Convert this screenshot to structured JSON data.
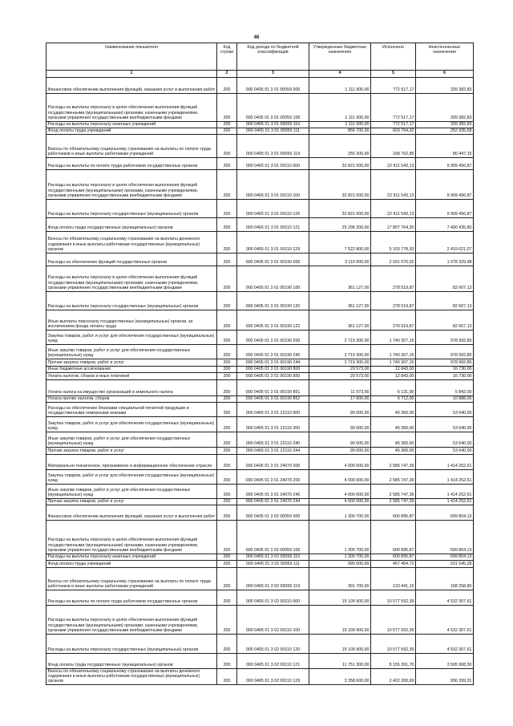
{
  "page_number": "46",
  "headers": [
    "Наименование показателя",
    "Код строки",
    "Код дохода по бюджетной классификации",
    "Утвержденные бюджетные назначения",
    "Исполнено",
    "Неисполненные назначения"
  ],
  "column_numbers": [
    "1",
    "2",
    "3",
    "4",
    "5",
    "6"
  ],
  "rows": [
    [
      "Финансовое обеспечение выполнения функций, оказания услуг и выполнения работ",
      "200",
      "000 0405 01 3 01 00059 000",
      "1 111 900,00",
      "772 517,17",
      "339 382,83"
    ],
    [
      "Расходы на выплаты персоналу в целях обеспечения выполнения функций государственными (муниципальными) органами, казенными учреждениями, органами управления государственными внебюджетными фондами",
      "200",
      "000 0405 01 3 01 00059 100",
      "1 111 900,00",
      "772 517,17",
      "339 382,83"
    ],
    [
      "Расходы на выплаты персоналу казенных учреждений",
      "200",
      "000 0405 01 3 01 00059 110",
      "1 111 900,00",
      "772 517,17",
      "339 382,83"
    ],
    [
      "Фонд оплаты труда учреждений",
      "200",
      "000 0405 01 3 01 00059 111",
      "856 700,00",
      "603 764,32",
      "252 935,68"
    ],
    [
      "Взносы по обязательному социальному страхованию на выплаты по оплате труда работников и иные выплаты работникам учреждений",
      "200",
      "000 0405 01 3 01 00059 119",
      "255 200,00",
      "168 752,85",
      "86 447,15"
    ],
    [
      "Расходы на выплаты по оплате труда работников государственных органов",
      "200",
      "000 0405 01 3 01 00110 000",
      "32 821 000,00",
      "22 911 543,13",
      "9 909 456,87"
    ],
    [
      "Расходы на выплаты персоналу в целях обеспечения выполнения функций государственными (муниципальными) органами, казенными учреждениями, органами управления государственными внебюджетными фондами",
      "200",
      "000 0405 01 3 01 00110 100",
      "32 821 000,00",
      "22 911 543,13",
      "9 909 456,87"
    ],
    [
      "Расходы на выплаты персоналу государственных (муниципальных) органов",
      "200",
      "000 0405 01 3 01 00110 120",
      "32 821 000,00",
      "22 911 543,13",
      "9 909 456,87"
    ],
    [
      "Фонд оплаты труда государственных (муниципальных) органов",
      "200",
      "000 0405 01 3 01 00110 121",
      "25 298 200,00",
      "17 807 764,20",
      "7 490 435,80"
    ],
    [
      "Взносы по обязательному социальному страхованию на выплаты денежного содержания и иные выплаты работникам государственных (муниципальных) органов",
      "200",
      "000 0405 01 3 01 00110 129",
      "7 522 800,00",
      "5 103 778,93",
      "2 419 021,07"
    ],
    [
      "Расходы на обеспечение функций государственных органов",
      "200",
      "000 0405 01 3 01 00190 000",
      "3 110 000,00",
      "2 031 670,02",
      "1 078 329,98"
    ],
    [
      "Расходы на выплаты персоналу в целях обеспечения выполнения функций государственными (муниципальными) органами, казенными учреждениями, органами управления государственными внебюджетными фондами",
      "200",
      "000 0405 01 3 01 00190 100",
      "361 127,00",
      "278 519,87",
      "82 607,13"
    ],
    [
      "Расходы на выплаты персоналу государственных (муниципальных) органов",
      "200",
      "000 0405 01 3 01 00190 120",
      "361 127,00",
      "278 519,87",
      "82 607,13"
    ],
    [
      "Иные выплаты персоналу государственных (муниципальных) органов, за исключением фонда оплаты труда",
      "200",
      "000 0405 01 3 01 00190 122",
      "361 127,00",
      "278 519,87",
      "82 607,13"
    ],
    [
      "Закупка товаров, работ и услуг для обеспечения государственных (муниципальных) нужд",
      "200",
      "000 0405 01 3 01 00190 200",
      "2 719 300,00",
      "1 740 307,15",
      "978 992,85"
    ],
    [
      "Иные закупки товаров, работ и услуг для обеспечения государственных (муниципальных) нужд",
      "200",
      "000 0405 01 3 01 00190 240",
      "2 719 300,00",
      "1 740 307,15",
      "978 992,85"
    ],
    [
      "Прочая закупка товаров, работ и услуг",
      "200",
      "000 0405 01 3 01 00190 244",
      "2 719 300,00",
      "1 740 307,15",
      "978 992,85"
    ],
    [
      "Иные бюджетные ассигнования",
      "200",
      "000 0405 01 3 01 00190 800",
      "29 573,00",
      "12 843,00",
      "16 730,00"
    ],
    [
      "Уплата налогов, сборов и иных платежей",
      "200",
      "000 0405 01 3 01 00190 850",
      "29 573,00",
      "12 843,00",
      "16 730,00"
    ],
    [
      "Уплата налога на имущество организаций и земельного налога",
      "200",
      "000 0405 01 3 01 00190 851",
      "11 973,00",
      "6 131,00",
      "5 842,00"
    ],
    [
      "Уплата прочих налогов, сборов",
      "200",
      "000 0405 01 3 01 00190 852",
      "17 600,00",
      "6 712,00",
      "10 888,00"
    ],
    [
      "Расходы на обеспечение бланками специальной печатной продукции и государственными номерными знаками",
      "200",
      "000 0405 01 3 01 22110 000",
      "99 000,00",
      "45 360,00",
      "53 640,00"
    ],
    [
      "Закупка товаров, работ и услуг для обеспечения государственных (муниципальных) нужд",
      "200",
      "000 0405 01 3 01 22110 200",
      "99 000,00",
      "45 360,00",
      "53 640,00"
    ],
    [
      "Иные закупки товаров, работ и услуг для обеспечения государственных (муниципальных) нужд",
      "200",
      "000 0405 01 3 01 22110 240",
      "99 000,00",
      "45 360,00",
      "53 640,00"
    ],
    [
      "Прочая закупка товаров, работ и услуг",
      "200",
      "000 0405 01 3 01 22110 244",
      "99 000,00",
      "45 360,00",
      "53 640,00"
    ],
    [
      "Материально-техническое, программное и информационное обеспечение отрасли",
      "200",
      "000 0405 01 3 01 24070 000",
      "4 000 000,00",
      "2 585 747,39",
      "1 414 252,61"
    ],
    [
      "Закупка товаров, работ и услуг для обеспечения государственных (муниципальных) нужд",
      "200",
      "000 0405 01 3 01 24070 200",
      "4 000 000,00",
      "2 585 747,39",
      "1 414 252,61"
    ],
    [
      "Иные закупки товаров, работ и услуг для обеспечения государственных (муниципальных) нужд",
      "200",
      "000 0405 01 3 01 24070 240",
      "4 000 000,00",
      "2 585 747,39",
      "1 414 252,61"
    ],
    [
      "Прочая закупка товаров, работ и услуг",
      "200",
      "000 0405 01 3 01 24070 244",
      "4 000 000,00",
      "2 585 747,39",
      "1 414 252,61"
    ],
    [
      "Финансовое обеспечение выполнения функций, оказания услуг и выполнения работ",
      "200",
      "000 0405 01 3 02 00059 000",
      "1 300 700,00",
      "600 895,87",
      "699 804,13"
    ],
    [
      "Расходы на выплаты персоналу в целях обеспечения выполнения функций государственными (муниципальными) органами, казенными учреждениями, органами управления государственными внебюджетными фондами",
      "200",
      "000 0405 01 3 02 00059 100",
      "1 300 700,00",
      "600 895,87",
      "699 804,13"
    ],
    [
      "Расходы на выплаты персоналу казенных учреждений",
      "200",
      "000 0405 01 3 02 00059 110",
      "1 300 700,00",
      "600 895,87",
      "699 804,13"
    ],
    [
      "Фонд оплаты труда учреждений",
      "200",
      "000 0405 01 3 02 00059 111",
      "999 000,00",
      "467 454,72",
      "531 545,28"
    ],
    [
      "Взносы по обязательному социальному страхованию на выплаты по оплате труда работников и иные выплаты работникам учреждений",
      "200",
      "000 0405 01 3 02 00059 119",
      "301 700,00",
      "133 441,15",
      "168 258,85"
    ],
    [
      "Расходы на выплаты по оплате труда работников государственных органов",
      "200",
      "000 0405 01 3 02 00110 000",
      "15 109 900,00",
      "10 577 592,39",
      "4 532 307,61"
    ],
    [
      "Расходы на выплаты персоналу в целях обеспечения выполнения функций государственными (муниципальными) органами, казенными учреждениями, органами управления государственными внебюджетными фондами",
      "200",
      "000 0405 01 3 02 00110 100",
      "15 109 900,00",
      "10 577 592,39",
      "4 532 307,61"
    ],
    [
      "Расходы на выплаты персоналу государственных (муниципальных) органов",
      "200",
      "000 0405 01 3 02 00110 120",
      "15 109 900,00",
      "10 577 592,39",
      "4 532 307,61"
    ],
    [
      "Фонд оплаты труда государственных (муниципальных) органов",
      "200",
      "000 0405 01 3 02 00110 121",
      "11 751 300,00",
      "8 155 391,70",
      "3 595 908,30"
    ],
    [
      "Взносы по обязательному социальному страхованию на выплаты денежного содержания и иные выплаты работникам государственных (муниципальных) органов",
      "200",
      "000 0405 01 3 02 00110 129",
      "3 358 600,00",
      "2 422 200,69",
      "936 399,31"
    ]
  ]
}
